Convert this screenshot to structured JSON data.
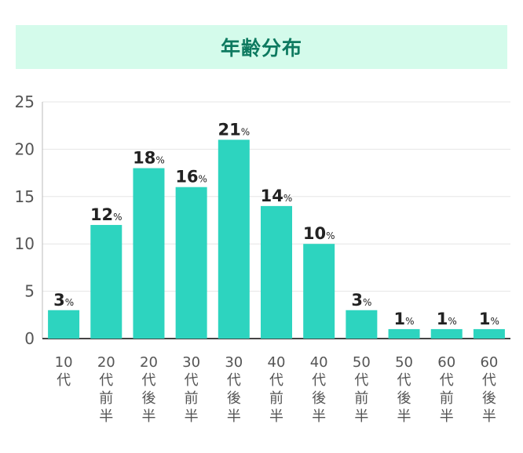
{
  "title": "年齢分布",
  "chart_data": {
    "type": "bar",
    "title": "年齢分布",
    "categories": [
      "10代",
      "20代前半",
      "20代後半",
      "30代前半",
      "30代後半",
      "40代前半",
      "40代後半",
      "50代前半",
      "50代後半",
      "60代前半",
      "60代後半"
    ],
    "values": [
      3,
      12,
      18,
      16,
      21,
      14,
      10,
      3,
      1,
      1,
      1
    ],
    "value_suffix": "%",
    "yticks": [
      0,
      5,
      10,
      15,
      20,
      25
    ],
    "ylim": [
      0,
      25
    ],
    "grid": true,
    "colors": {
      "bar": "#2dd4bf",
      "title_bg": "#d4fbeb",
      "title_text": "#0e7a60"
    }
  }
}
